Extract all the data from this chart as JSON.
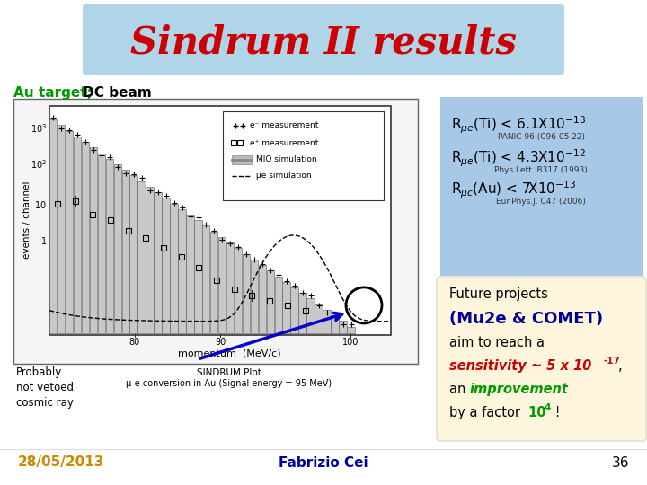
{
  "title": "Sindrum II results",
  "title_color": "#cc0000",
  "title_bg_color": "#b0d4e8",
  "bg_color": "#ffffff",
  "subtitle_au": "Au target;",
  "subtitle_au_color": "#009900",
  "subtitle_dc": " DC beam",
  "subtitle_dc_color": "#000000",
  "results_box_color": "#a8c8e8",
  "future_box_color": "#fdf5dc",
  "future_text2_color": "#000099",
  "future_text4_color": "#cc0000",
  "future_text5b_color": "#009900",
  "arrow_color": "#0000cc",
  "date_text": "28/05/2013",
  "date_color": "#cc8800",
  "center_text": "Fabrizio Cei",
  "center_color": "#000099",
  "page_num": "36",
  "page_color": "#000000"
}
